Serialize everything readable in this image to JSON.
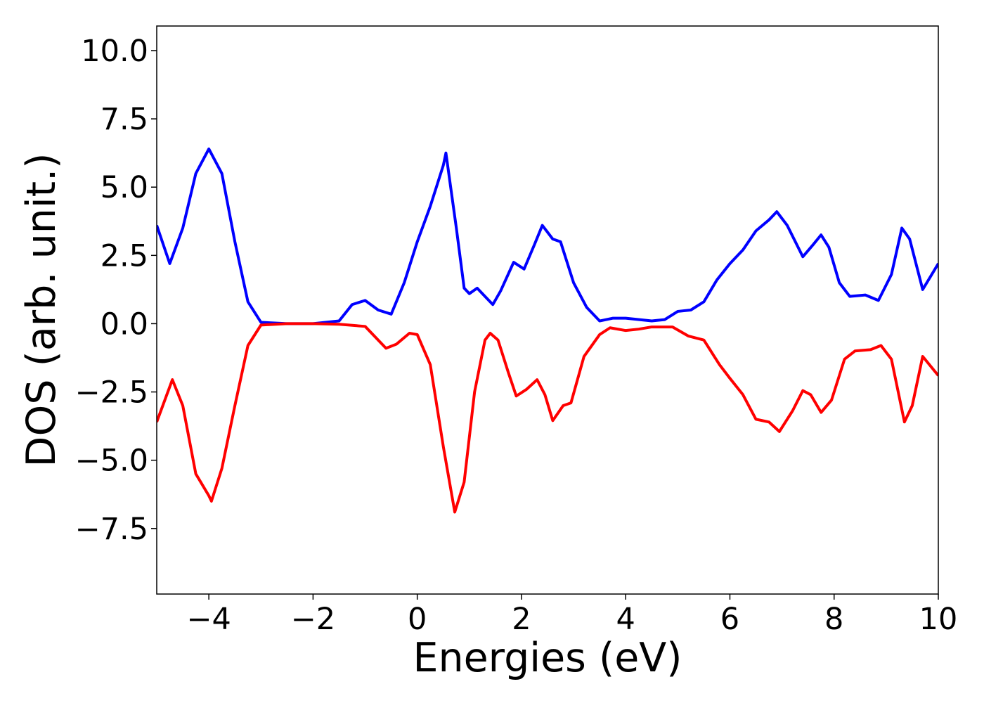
{
  "chart_data": {
    "type": "line",
    "xlabel": "Energies (eV)",
    "ylabel": "DOS (arb. unit.)",
    "xlim": [
      -5,
      10
    ],
    "ylim": [
      -9.9,
      10.9
    ],
    "xticks": [
      {
        "value": -4,
        "label": "−4"
      },
      {
        "value": -2,
        "label": "−2"
      },
      0,
      2,
      4,
      6,
      8,
      10
    ],
    "yticks": [
      {
        "value": -7.5,
        "label": "−7.5"
      },
      {
        "value": -5,
        "label": "−5.0"
      },
      {
        "value": -2.5,
        "label": "−2.5"
      },
      {
        "value": 0,
        "label": "0.0"
      },
      {
        "value": 2.5,
        "label": "2.5"
      },
      {
        "value": 5,
        "label": "5.0"
      },
      {
        "value": 7.5,
        "label": "7.5"
      },
      {
        "value": 10,
        "label": "10.0"
      }
    ],
    "series": [
      {
        "color": "#0000ff",
        "x": [
          -5,
          -4.75,
          -4.5,
          -4.25,
          -4,
          -3.75,
          -3.5,
          -3.25,
          -3,
          -2.5,
          -2,
          -1.5,
          -1.25,
          -1,
          -0.75,
          -0.5,
          -0.25,
          0,
          0.25,
          0.5,
          0.55,
          0.75,
          0.9,
          1,
          1.15,
          1.3,
          1.45,
          1.6,
          1.85,
          2.05,
          2.25,
          2.4,
          2.6,
          2.75,
          3,
          3.25,
          3.5,
          3.75,
          4,
          4.5,
          4.75,
          5,
          5.25,
          5.5,
          5.75,
          6,
          6.25,
          6.5,
          6.75,
          6.9,
          7.1,
          7.4,
          7.6,
          7.75,
          7.9,
          8.1,
          8.3,
          8.6,
          8.85,
          9.1,
          9.3,
          9.45,
          9.7,
          10
        ],
        "values": [
          3.6,
          2.2,
          3.5,
          5.5,
          6.4,
          5.5,
          3.0,
          0.8,
          0.05,
          0,
          0,
          0.1,
          0.7,
          0.85,
          0.5,
          0.35,
          1.5,
          3.0,
          4.3,
          5.8,
          6.25,
          3.5,
          1.3,
          1.1,
          1.3,
          1.0,
          0.7,
          1.2,
          2.25,
          2.0,
          2.9,
          3.6,
          3.1,
          3.0,
          1.5,
          0.6,
          0.1,
          0.2,
          0.2,
          0.1,
          0.15,
          0.45,
          0.5,
          0.8,
          1.6,
          2.2,
          2.7,
          3.4,
          3.8,
          4.1,
          3.6,
          2.45,
          2.9,
          3.25,
          2.8,
          1.5,
          1.0,
          1.05,
          0.85,
          1.8,
          3.5,
          3.1,
          1.25,
          2.2
        ]
      },
      {
        "color": "#ff0000",
        "x": [
          -5,
          -4.7,
          -4.5,
          -4.25,
          -4,
          -3.95,
          -3.75,
          -3.5,
          -3.25,
          -3,
          -2.5,
          -2,
          -1.5,
          -1,
          -0.75,
          -0.6,
          -0.4,
          -0.15,
          0,
          0.25,
          0.5,
          0.72,
          0.9,
          1.1,
          1.3,
          1.4,
          1.55,
          1.75,
          1.9,
          2.1,
          2.3,
          2.45,
          2.6,
          2.8,
          2.95,
          3.2,
          3.5,
          3.7,
          4,
          4.25,
          4.5,
          4.9,
          5.2,
          5.5,
          5.8,
          6,
          6.25,
          6.5,
          6.75,
          6.95,
          7.2,
          7.4,
          7.55,
          7.75,
          7.95,
          8.2,
          8.4,
          8.7,
          8.9,
          9.1,
          9.35,
          9.5,
          9.7,
          10
        ],
        "values": [
          -3.6,
          -2.05,
          -3.0,
          -5.5,
          -6.3,
          -6.5,
          -5.3,
          -3.0,
          -0.8,
          -0.05,
          0,
          0,
          -0.02,
          -0.1,
          -0.6,
          -0.9,
          -0.75,
          -0.35,
          -0.4,
          -1.5,
          -4.5,
          -6.9,
          -5.8,
          -2.5,
          -0.6,
          -0.35,
          -0.6,
          -1.8,
          -2.65,
          -2.4,
          -2.05,
          -2.6,
          -3.55,
          -3.0,
          -2.9,
          -1.2,
          -0.4,
          -0.15,
          -0.25,
          -0.2,
          -0.12,
          -0.12,
          -0.45,
          -0.6,
          -1.5,
          -2.0,
          -2.6,
          -3.5,
          -3.6,
          -3.95,
          -3.2,
          -2.45,
          -2.6,
          -3.25,
          -2.8,
          -1.3,
          -1.0,
          -0.95,
          -0.8,
          -1.3,
          -3.6,
          -3.0,
          -1.2,
          -1.9
        ]
      }
    ]
  }
}
